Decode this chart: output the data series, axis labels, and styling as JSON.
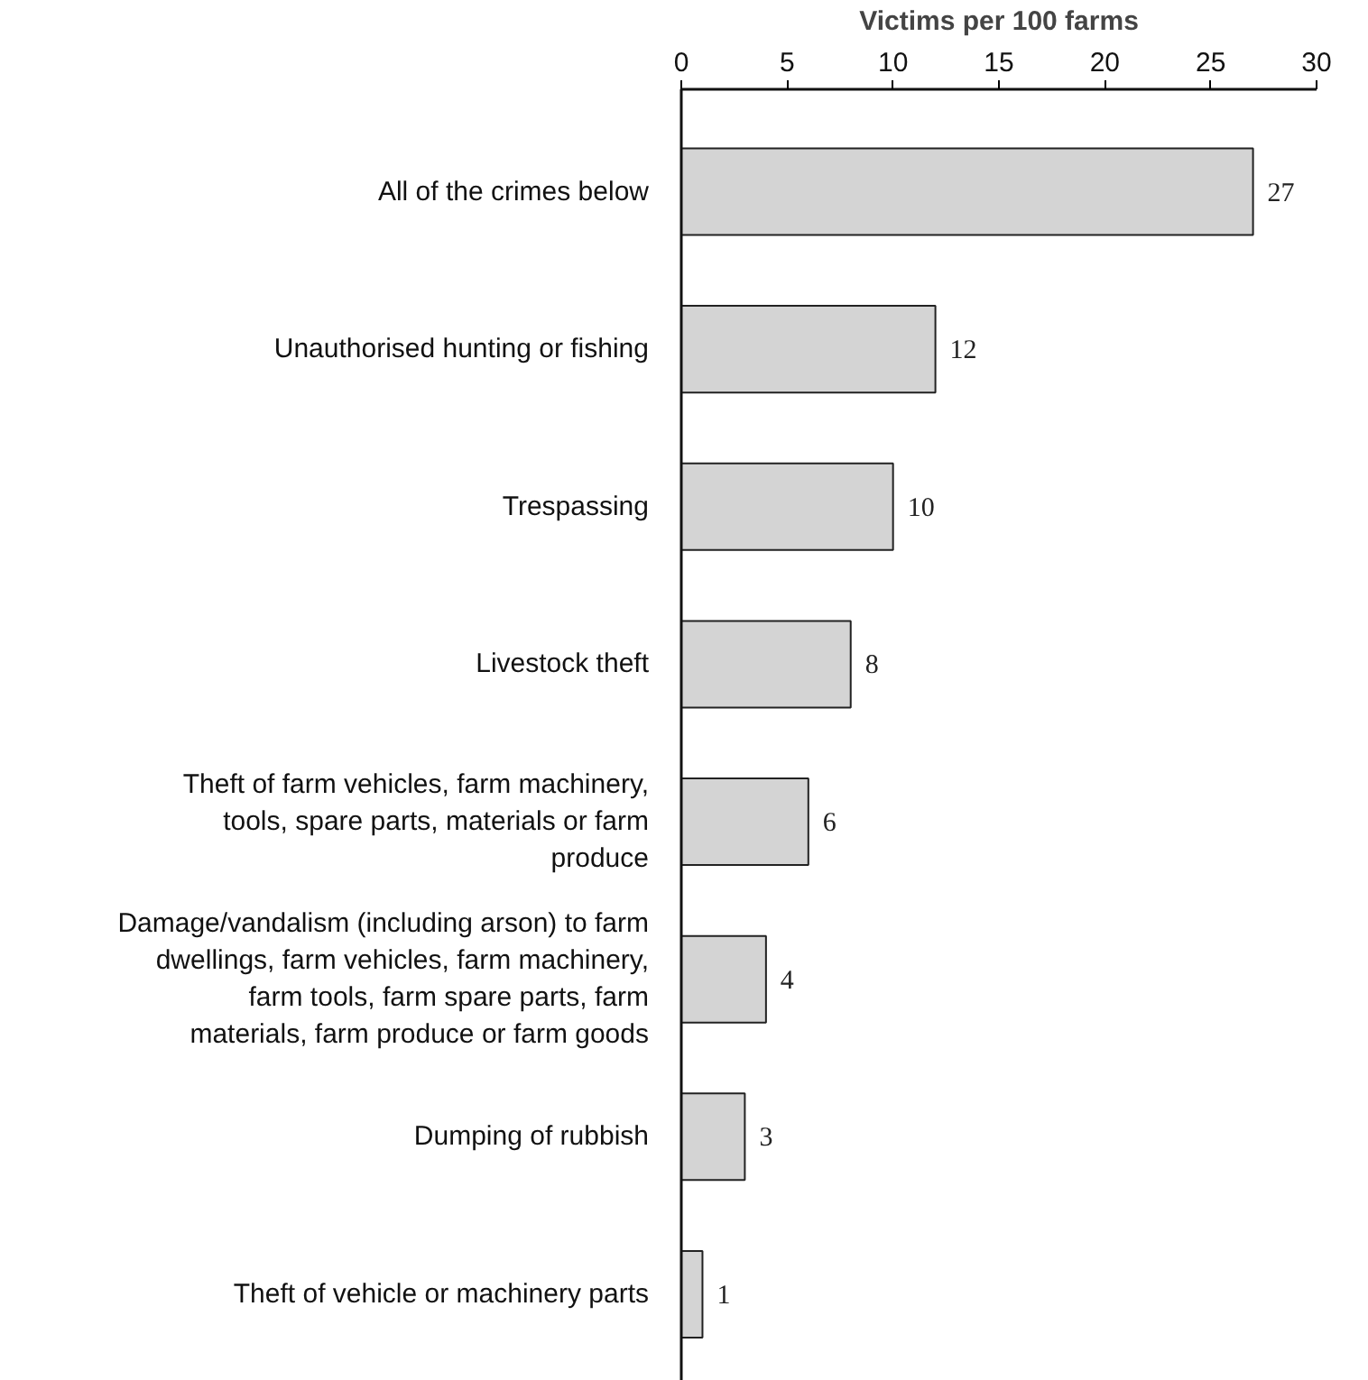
{
  "chart_data": {
    "type": "bar",
    "orientation": "horizontal",
    "xlabel": "Victims per 100 farms",
    "categories": [
      "All of the crimes below",
      "Unauthorised hunting or fishing",
      "Trespassing",
      "Livestock theft",
      "Theft of farm vehicles, farm machinery, tools, spare parts, materials or farm produce",
      "Damage/vandalism (including arson) to farm dwellings, farm vehicles, farm machinery, farm tools, farm spare parts, farm materials, farm produce or farm goods",
      "Dumping of rubbish",
      "Theft of vehicle or machinery parts"
    ],
    "values": [
      27,
      12,
      10,
      8,
      6,
      4,
      3,
      1
    ],
    "color": "#d4d4d4",
    "xlim": [
      0,
      30
    ],
    "xticks": [
      0,
      5,
      10,
      15,
      20,
      25,
      30
    ],
    "data_labels": true
  }
}
